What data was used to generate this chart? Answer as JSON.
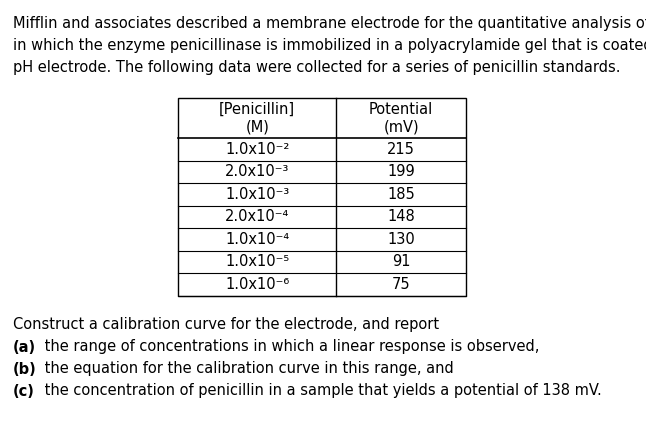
{
  "para_lines": [
    "Mifflin and associates described a membrane electrode for the quantitative analysis of penicillin",
    "in which the enzyme penicillinase is immobilized in a polyacrylamide gel that is coated on a glass",
    "pH electrode. The following data were collected for a series of penicillin standards."
  ],
  "table_header": [
    "[Penicillin]\n(M)",
    "Potential\n(mV)"
  ],
  "table_col1": [
    "1.0x10⁻²",
    "2.0x10⁻³",
    "1.0x10⁻³",
    "2.0x10⁻⁴",
    "1.0x10⁻⁴",
    "1.0x10⁻⁵",
    "1.0x10⁻⁶"
  ],
  "table_col2": [
    "215",
    "199",
    "185",
    "148",
    "130",
    "91",
    "75"
  ],
  "instruction": "Construct a calibration curve for the electrode, and report",
  "parts": [
    {
      "bold": "(a)",
      "rest": " the range of concentrations in which a linear response is observed,"
    },
    {
      "bold": "(b)",
      "rest": " the equation for the calibration curve in this range, and"
    },
    {
      "bold": "(c)",
      "rest": " the concentration of penicillin in a sample that yields a potential of 138 mV."
    }
  ],
  "bg": "#ffffff",
  "fg": "#000000",
  "fs_body": 10.5,
  "fs_table": 10.5,
  "fig_w": 6.46,
  "fig_h": 4.26,
  "dpi": 100
}
